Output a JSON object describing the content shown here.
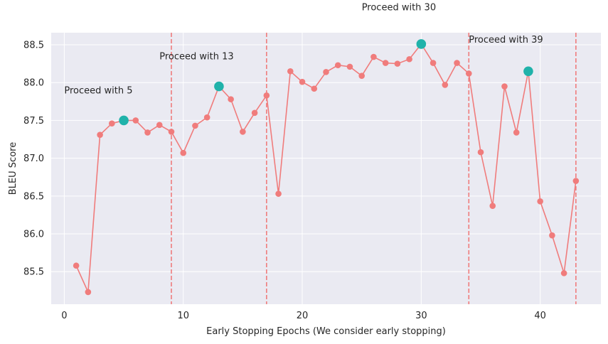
{
  "chart_data": {
    "type": "line",
    "title": "",
    "xlabel": "Early Stopping Epochs (We consider early stopping)",
    "ylabel": "BLEU Score",
    "xlim": [
      -1.1,
      45.1
    ],
    "ylim": [
      85.07,
      88.66
    ],
    "xticks": [
      0,
      10,
      20,
      30,
      40
    ],
    "yticks": [
      85.5,
      86.0,
      86.5,
      87.0,
      87.5,
      88.0,
      88.5
    ],
    "grid": true,
    "series": [
      {
        "x": [
          1,
          2,
          3,
          4,
          5,
          6,
          7,
          8,
          9,
          10,
          11,
          12,
          13,
          14,
          15,
          16,
          17,
          18,
          19,
          20,
          21,
          22,
          23,
          24,
          25,
          26,
          27,
          28,
          29,
          30,
          31,
          32,
          33,
          34,
          35,
          36,
          37,
          38,
          39,
          40,
          41,
          42,
          43
        ],
        "y": [
          85.58,
          85.23,
          87.31,
          87.46,
          87.5,
          87.5,
          87.34,
          87.44,
          87.35,
          87.07,
          87.43,
          87.54,
          87.95,
          87.78,
          87.35,
          87.6,
          87.83,
          86.53,
          88.15,
          88.01,
          87.92,
          88.14,
          88.23,
          88.21,
          88.09,
          88.34,
          88.26,
          88.25,
          88.31,
          88.51,
          88.26,
          87.97,
          88.26,
          88.12,
          87.08,
          86.37,
          87.95,
          87.34,
          88.15,
          86.43,
          85.98,
          85.48,
          86.7
        ],
        "color": "#f07c7c"
      }
    ],
    "highlights": {
      "x": [
        5,
        13,
        30,
        39
      ],
      "y": [
        87.5,
        87.95,
        88.51,
        88.15
      ],
      "color": "#20b2aa"
    },
    "vlines": {
      "x": [
        9,
        17,
        34,
        43
      ],
      "color": "#f07c7c",
      "style": "dashed"
    },
    "annotations": [
      {
        "text": "Proceed with 5",
        "x": 0.0,
        "y": 87.9
      },
      {
        "text": "Proceed with 13",
        "x": 8.0,
        "y": 88.35
      },
      {
        "text": "Proceed with 30",
        "x": 25.0,
        "y": 89.0
      },
      {
        "text": "Proceed with 39",
        "x": 34.0,
        "y": 88.57
      }
    ],
    "background_color": "#eaeaf2",
    "grid_color": "#ffffff"
  }
}
